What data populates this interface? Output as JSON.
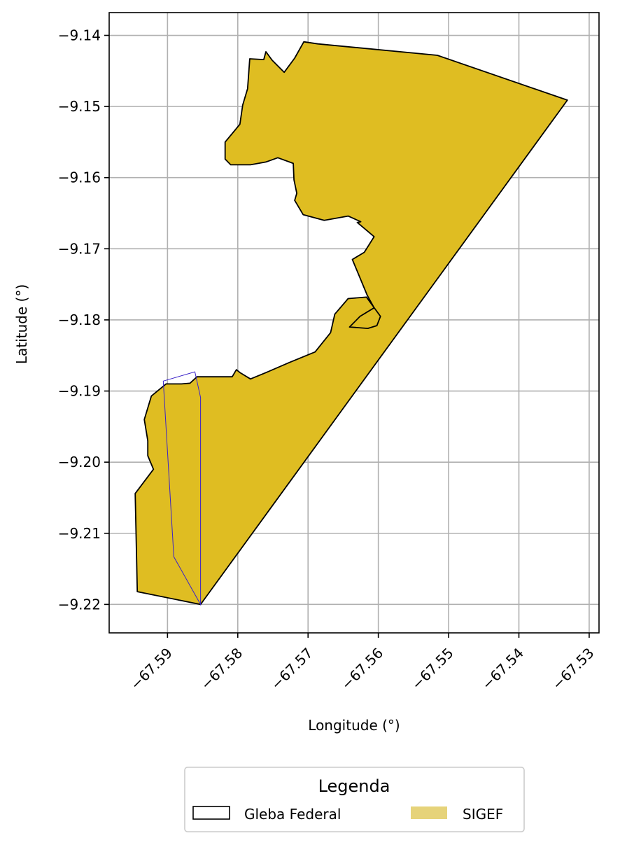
{
  "chart_data": {
    "type": "map",
    "xlabel": "Longitude (°)",
    "ylabel": "Latitude (°)",
    "xlim": [
      -67.5983,
      -67.5286
    ],
    "ylim": [
      -9.224,
      -9.1368
    ],
    "grid": true,
    "x_ticks": [
      -67.59,
      -67.58,
      -67.57,
      -67.56,
      -67.55,
      -67.54,
      -67.53
    ],
    "x_tick_labels": [
      "−67.59",
      "−67.58",
      "−67.57",
      "−67.56",
      "−67.55",
      "−67.54",
      "−67.53"
    ],
    "y_ticks": [
      -9.14,
      -9.15,
      -9.16,
      -9.17,
      -9.18,
      -9.19,
      -9.2,
      -9.21,
      -9.22
    ],
    "y_tick_labels": [
      "−9.14",
      "−9.15",
      "−9.16",
      "−9.17",
      "−9.18",
      "−9.19",
      "−9.20",
      "−9.21",
      "−9.22"
    ],
    "legend": {
      "title": "Legenda",
      "placement": "bottom-center",
      "entries": [
        {
          "label": "Gleba Federal",
          "style": "outline",
          "color": "#000000"
        },
        {
          "label": "SIGEF",
          "style": "fill",
          "color": "#e6d37a"
        }
      ]
    },
    "colors": {
      "gleba_fill": "#dfbd22",
      "gleba_edge": "#000000",
      "sigef_edge": "#3a22c8",
      "grid": "#b0b0b0"
    },
    "series": [
      {
        "name": "Gleba Federal",
        "polygon": [
          [
            -67.5516,
            -9.1428
          ],
          [
            -67.5686,
            -9.1412
          ],
          [
            -67.5706,
            -9.1409
          ],
          [
            -67.5719,
            -9.1432
          ],
          [
            -67.5734,
            -9.1452
          ],
          [
            -67.5751,
            -9.1435
          ],
          [
            -67.576,
            -9.1423
          ],
          [
            -67.5763,
            -9.1434
          ],
          [
            -67.5783,
            -9.1433
          ],
          [
            -67.5786,
            -9.1475
          ],
          [
            -67.5793,
            -9.1498
          ],
          [
            -67.5797,
            -9.1525
          ],
          [
            -67.5818,
            -9.155
          ],
          [
            -67.5818,
            -9.1574
          ],
          [
            -67.581,
            -9.1582
          ],
          [
            -67.5782,
            -9.1582
          ],
          [
            -67.576,
            -9.1578
          ],
          [
            -67.5743,
            -9.1572
          ],
          [
            -67.5721,
            -9.158
          ],
          [
            -67.572,
            -9.1603
          ],
          [
            -67.5716,
            -9.1622
          ],
          [
            -67.5719,
            -9.1632
          ],
          [
            -67.5707,
            -9.1652
          ],
          [
            -67.5677,
            -9.166
          ],
          [
            -67.5643,
            -9.1654
          ],
          [
            -67.5625,
            -9.1662
          ],
          [
            -67.563,
            -9.1663
          ],
          [
            -67.5606,
            -9.1683
          ],
          [
            -67.562,
            -9.1705
          ],
          [
            -67.5637,
            -9.1715
          ],
          [
            -67.5616,
            -9.1765
          ],
          [
            -67.5606,
            -9.1783
          ],
          [
            -67.5626,
            -9.1795
          ],
          [
            -67.5641,
            -9.181
          ],
          [
            -67.5615,
            -9.1812
          ],
          [
            -67.5602,
            -9.1808
          ],
          [
            -67.5597,
            -9.1795
          ],
          [
            -67.5617,
            -9.1768
          ],
          [
            -67.5643,
            -9.177
          ],
          [
            -67.5662,
            -9.1792
          ],
          [
            -67.5668,
            -9.1818
          ],
          [
            -67.569,
            -9.1845
          ],
          [
            -67.5727,
            -9.186
          ],
          [
            -67.5762,
            -9.1875
          ],
          [
            -67.5782,
            -9.1883
          ],
          [
            -67.5797,
            -9.1874
          ],
          [
            -67.5802,
            -9.187
          ],
          [
            -67.5808,
            -9.188
          ],
          [
            -67.5858,
            -9.188
          ],
          [
            -67.5868,
            -9.1889
          ],
          [
            -67.588,
            -9.189
          ],
          [
            -67.5902,
            -9.189
          ],
          [
            -67.5923,
            -9.1907
          ],
          [
            -67.5933,
            -9.194
          ],
          [
            -67.5928,
            -9.197
          ],
          [
            -67.5928,
            -9.1991
          ],
          [
            -67.592,
            -9.201
          ],
          [
            -67.5946,
            -9.2044
          ],
          [
            -67.5943,
            -9.2182
          ],
          [
            -67.5853,
            -9.22
          ],
          [
            -67.5331,
            -9.1491
          ]
        ]
      },
      {
        "name": "SIGEF",
        "polygon": [
          [
            -67.5906,
            -9.1886
          ],
          [
            -67.5861,
            -9.1873
          ],
          [
            -67.5853,
            -9.1909
          ],
          [
            -67.5853,
            -9.22
          ],
          [
            -67.5891,
            -9.2133
          ]
        ]
      }
    ]
  }
}
